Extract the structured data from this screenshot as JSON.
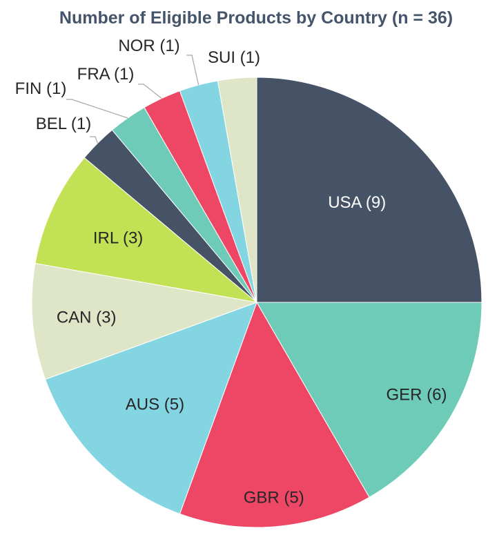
{
  "chart_data": {
    "type": "pie",
    "title": "Number of Eligible Products by Country (n = 36)",
    "slices": [
      {
        "label": "USA (9)",
        "category": "USA",
        "value": 9,
        "color": "#465366",
        "label_color": "#ffffff"
      },
      {
        "label": "GER (6)",
        "category": "GER",
        "value": 6,
        "color": "#6dcbb7",
        "label_color": "#262626"
      },
      {
        "label": "GBR (5)",
        "category": "GBR",
        "value": 5,
        "color": "#ee4766",
        "label_color": "#262626"
      },
      {
        "label": "AUS (5)",
        "category": "AUS",
        "value": 5,
        "color": "#84d5e2",
        "label_color": "#262626"
      },
      {
        "label": "CAN (3)",
        "category": "CAN",
        "value": 3,
        "color": "#dfe6c7",
        "label_color": "#262626"
      },
      {
        "label": "IRL (3)",
        "category": "IRL",
        "value": 3,
        "color": "#c3e154",
        "label_color": "#262626"
      },
      {
        "label": "BEL (1)",
        "category": "BEL",
        "value": 1,
        "color": "#465366",
        "label_color": "#262626"
      },
      {
        "label": "FIN (1)",
        "category": "FIN",
        "value": 1,
        "color": "#6dcbb7",
        "label_color": "#262626"
      },
      {
        "label": "FRA (1)",
        "category": "FRA",
        "value": 1,
        "color": "#ee4766",
        "label_color": "#262626"
      },
      {
        "label": "NOR (1)",
        "category": "NOR",
        "value": 1,
        "color": "#84d5e2",
        "label_color": "#262626"
      },
      {
        "label": "SUI (1)",
        "category": "SUI",
        "value": 1,
        "color": "#dfe6c7",
        "label_color": "#262626"
      }
    ],
    "start_angle": "12 o'clock",
    "direction": "clockwise",
    "legend": "none",
    "labels": "category with count, inside large slices, outside with leader lines for small slices"
  }
}
